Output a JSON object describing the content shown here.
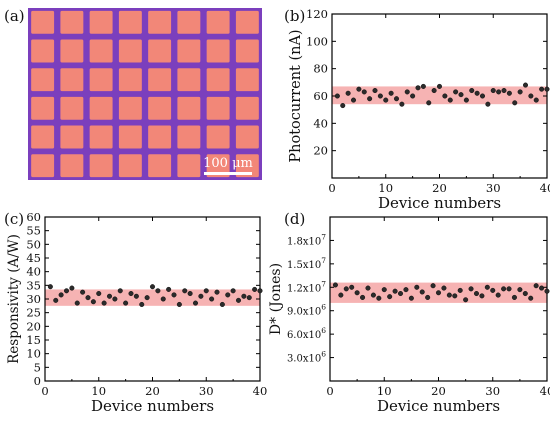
{
  "chart_data": [
    {
      "panel": "(a)",
      "type": "image",
      "scale_bar": "100 μm",
      "grid": {
        "rows": 6,
        "cols": 8
      },
      "colors": {
        "squares": "#f28778",
        "grid": "#7b3fbd"
      }
    },
    {
      "panel": "(b)",
      "type": "scatter",
      "xlabel": "Device numbers",
      "ylabel": "Photocurrent (nA)",
      "xlim": [
        0,
        40
      ],
      "ylim": [
        0,
        120
      ],
      "xticks": [
        "0",
        "10",
        "20",
        "30",
        "40"
      ],
      "yticks": [
        "20",
        "40",
        "60",
        "80",
        "100",
        "120"
      ],
      "band": [
        54,
        67
      ],
      "colors": {
        "band": "#f4a6a6",
        "point": "#2b2b2b"
      },
      "x": [
        1,
        2,
        3,
        4,
        5,
        6,
        7,
        8,
        9,
        10,
        11,
        12,
        13,
        14,
        15,
        16,
        17,
        18,
        19,
        20,
        21,
        22,
        23,
        24,
        25,
        26,
        27,
        28,
        29,
        30,
        31,
        32,
        33,
        34,
        35,
        36,
        37,
        38,
        39,
        40
      ],
      "y": [
        60,
        53,
        62,
        57,
        65,
        63,
        58,
        64,
        60,
        57,
        62,
        58,
        54,
        63,
        60,
        66,
        67,
        55,
        64,
        67,
        60,
        57,
        63,
        61,
        57,
        64,
        62,
        60,
        54,
        64,
        63,
        64,
        62,
        55,
        63,
        68,
        60,
        57,
        65,
        65
      ]
    },
    {
      "panel": "(c)",
      "type": "scatter",
      "xlabel": "Device numbers",
      "ylabel": "Responsivity (A/W)",
      "xlim": [
        0,
        40
      ],
      "ylim": [
        0,
        60
      ],
      "xticks": [
        "0",
        "10",
        "20",
        "30",
        "40"
      ],
      "yticks": [
        "0",
        "5",
        "10",
        "15",
        "20",
        "25",
        "30",
        "35",
        "40",
        "45",
        "50",
        "55",
        "60"
      ],
      "band": [
        27.5,
        33.5
      ],
      "colors": {
        "band": "#f4a6a6",
        "point": "#2b2b2b"
      },
      "x": [
        1,
        2,
        3,
        4,
        5,
        6,
        7,
        8,
        9,
        10,
        11,
        12,
        13,
        14,
        15,
        16,
        17,
        18,
        19,
        20,
        21,
        22,
        23,
        24,
        25,
        26,
        27,
        28,
        29,
        30,
        31,
        32,
        33,
        34,
        35,
        36,
        37,
        38,
        39,
        40
      ],
      "y": [
        34.5,
        29.5,
        31.5,
        33,
        34,
        28.5,
        32.5,
        30.5,
        29,
        32,
        28.5,
        31,
        30,
        33,
        28.5,
        32,
        31,
        28,
        30.5,
        34.5,
        33,
        30,
        33.5,
        31.5,
        28,
        33,
        32,
        28.5,
        31,
        33,
        30,
        32.5,
        28,
        31.5,
        33,
        29.5,
        31,
        30.5,
        33.5,
        33
      ]
    },
    {
      "panel": "(d)",
      "type": "scatter",
      "xlabel": "Device numbers",
      "ylabel": "D* (Jones)",
      "xlim": [
        0,
        40
      ],
      "ylim": [
        0,
        21000000
      ],
      "xticks": [
        "0",
        "10",
        "20",
        "30",
        "40"
      ],
      "yticks": [
        {
          "value": 3000000,
          "base": "3.0x10",
          "exp": "6"
        },
        {
          "value": 6000000,
          "base": "6.0x10",
          "exp": "6"
        },
        {
          "value": 9000000,
          "base": "9.0x10",
          "exp": "6"
        },
        {
          "value": 12000000,
          "base": "1.2x10",
          "exp": "7"
        },
        {
          "value": 15000000,
          "base": "1.5x10",
          "exp": "7"
        },
        {
          "value": 18000000,
          "base": "1.8x10",
          "exp": "7"
        }
      ],
      "band": [
        10000000,
        12600000
      ],
      "colors": {
        "band": "#f4a6a6",
        "point": "#2b2b2b"
      },
      "x": [
        1,
        2,
        3,
        4,
        5,
        6,
        7,
        8,
        9,
        10,
        11,
        12,
        13,
        14,
        15,
        16,
        17,
        18,
        19,
        20,
        21,
        22,
        23,
        24,
        25,
        26,
        27,
        28,
        29,
        30,
        31,
        32,
        33,
        34,
        35,
        36,
        37,
        38,
        39,
        40
      ],
      "y": [
        12300000,
        11000000,
        11800000,
        12000000,
        11300000,
        10700000,
        11900000,
        11000000,
        10600000,
        11700000,
        10800000,
        11500000,
        11200000,
        11700000,
        10600000,
        12000000,
        11400000,
        10700000,
        12200000,
        11300000,
        11900000,
        11000000,
        10900000,
        11600000,
        10400000,
        11800000,
        11200000,
        10900000,
        12000000,
        11600000,
        11000000,
        11800000,
        11800000,
        10700000,
        11700000,
        11200000,
        10600000,
        12200000,
        11900000,
        11500000
      ]
    }
  ]
}
